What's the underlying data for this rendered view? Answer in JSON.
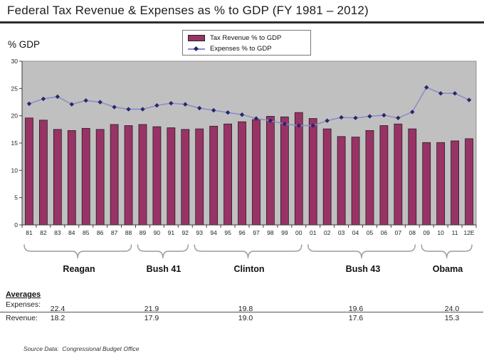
{
  "title": "Federal Tax Revenue & Expenses as % to GDP (FY 1981 – 2012)",
  "y_axis_label": "% GDP",
  "legend": {
    "series1": "Tax Revenue % to GDP",
    "series2": "Expenses % to GDP"
  },
  "chart_data": {
    "type": "bar",
    "title": "Federal Tax Revenue & Expenses as % to GDP (FY 1981 – 2012)",
    "xlabel": "",
    "ylabel": "% GDP",
    "ylim": [
      0,
      30
    ],
    "ytick_step": 5,
    "y_ticks": [
      0,
      5,
      10,
      15,
      20,
      25,
      30
    ],
    "grid": false,
    "plot_bg": "#C0C0C0",
    "legend_position": "top-center",
    "categories": [
      "81",
      "82",
      "83",
      "84",
      "85",
      "86",
      "87",
      "88",
      "89",
      "90",
      "91",
      "92",
      "93",
      "94",
      "95",
      "96",
      "97",
      "98",
      "99",
      "00",
      "01",
      "02",
      "03",
      "04",
      "05",
      "06",
      "07",
      "08",
      "09",
      "10",
      "11",
      "12E"
    ],
    "series": [
      {
        "name": "Tax Revenue % to GDP",
        "type": "bar",
        "color": "#993366",
        "values": [
          19.6,
          19.2,
          17.5,
          17.3,
          17.7,
          17.5,
          18.4,
          18.2,
          18.4,
          18.0,
          17.8,
          17.5,
          17.6,
          18.1,
          18.5,
          18.9,
          19.3,
          19.9,
          19.8,
          20.6,
          19.5,
          17.6,
          16.2,
          16.1,
          17.3,
          18.2,
          18.5,
          17.6,
          15.1,
          15.1,
          15.4,
          15.8
        ]
      },
      {
        "name": "Expenses % to GDP",
        "type": "line",
        "color": "#8C8CC8",
        "marker_color": "#26266E",
        "values": [
          22.2,
          23.1,
          23.5,
          22.1,
          22.8,
          22.5,
          21.6,
          21.2,
          21.2,
          21.9,
          22.3,
          22.1,
          21.4,
          21.0,
          20.6,
          20.2,
          19.5,
          19.1,
          18.5,
          18.2,
          18.2,
          19.1,
          19.7,
          19.6,
          19.9,
          20.1,
          19.6,
          20.7,
          25.2,
          24.1,
          24.1,
          22.9
        ]
      }
    ]
  },
  "eras": [
    {
      "label": "Reagan",
      "start": 0,
      "end": 7
    },
    {
      "label": "Bush 41",
      "start": 8,
      "end": 11
    },
    {
      "label": "Clinton",
      "start": 12,
      "end": 19
    },
    {
      "label": "Bush 43",
      "start": 20,
      "end": 27
    },
    {
      "label": "Obama",
      "start": 28,
      "end": 31
    }
  ],
  "averages": {
    "heading": "Averages",
    "expenses_label": "Expenses:",
    "revenue_label": "Revenue:",
    "expenses": [
      "22.4",
      "21.9",
      "19.8",
      "19.6",
      "24.0"
    ],
    "revenue": [
      "18.2",
      "17.9",
      "19.0",
      "17.6",
      "15.3"
    ]
  },
  "source": "Source Data:  Congressional Budget Office"
}
